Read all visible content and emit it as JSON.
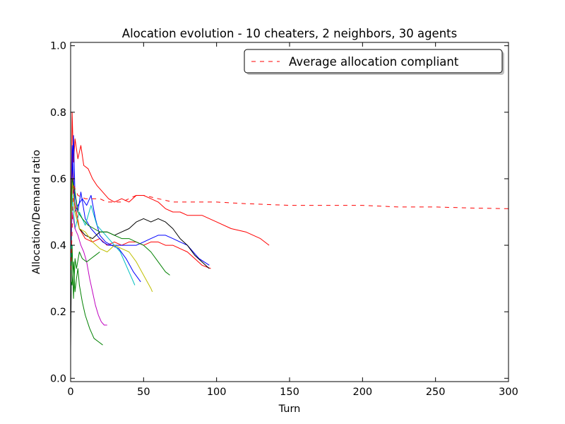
{
  "chart_data": {
    "type": "line",
    "title": "Alocation evolution - 10 cheaters, 2 neighbors, 30 agents",
    "xlabel": "Turn",
    "ylabel": "Allocation/Demand ratio",
    "xlim": [
      0,
      300
    ],
    "ylim": [
      -0.01,
      1.01
    ],
    "xticks": [
      0,
      50,
      100,
      150,
      200,
      250,
      300
    ],
    "xtick_labels": [
      "0",
      "50",
      "100",
      "150",
      "200",
      "250",
      "300"
    ],
    "yticks": [
      0.0,
      0.2,
      0.4,
      0.6,
      0.8,
      1.0
    ],
    "ytick_labels": [
      "0.0",
      "0.2",
      "0.4",
      "0.6",
      "0.8",
      "1.0"
    ],
    "grid": false,
    "legend": {
      "position": "top-right",
      "entries": [
        {
          "label": "Average allocation compliant",
          "color": "#ff0000",
          "style": "dashed"
        }
      ]
    },
    "series": [
      {
        "name": "Average allocation compliant",
        "color": "#ff0000",
        "dashed": true,
        "x": [
          0,
          2,
          5,
          10,
          15,
          20,
          25,
          30,
          35,
          40,
          45,
          50,
          55,
          60,
          65,
          70,
          80,
          90,
          100,
          120,
          150,
          175,
          200,
          225,
          250,
          275,
          300
        ],
        "y": [
          0.3,
          0.58,
          0.55,
          0.54,
          0.54,
          0.54,
          0.53,
          0.53,
          0.53,
          0.54,
          0.55,
          0.55,
          0.545,
          0.54,
          0.535,
          0.53,
          0.53,
          0.53,
          0.53,
          0.525,
          0.52,
          0.52,
          0.52,
          0.515,
          0.515,
          0.512,
          0.51
        ]
      },
      {
        "color": "#ff0000",
        "x": [
          0,
          1,
          2,
          3,
          5,
          7,
          9,
          12,
          15,
          18,
          22,
          26,
          30,
          35,
          40,
          45,
          50,
          55,
          60,
          65,
          70,
          75,
          80,
          90,
          100,
          110,
          120,
          130,
          136
        ],
        "y": [
          0.3,
          0.8,
          0.65,
          0.72,
          0.66,
          0.7,
          0.64,
          0.63,
          0.6,
          0.58,
          0.56,
          0.54,
          0.53,
          0.54,
          0.53,
          0.55,
          0.55,
          0.54,
          0.53,
          0.51,
          0.5,
          0.5,
          0.49,
          0.49,
          0.47,
          0.45,
          0.44,
          0.42,
          0.4
        ]
      },
      {
        "color": "#ff0000",
        "x": [
          0,
          1,
          2,
          4,
          6,
          10,
          15,
          20,
          25,
          30,
          35,
          40,
          45,
          50,
          55,
          60,
          65,
          70,
          75,
          80,
          85,
          90,
          96
        ],
        "y": [
          0.2,
          0.7,
          0.55,
          0.5,
          0.45,
          0.42,
          0.41,
          0.42,
          0.4,
          0.41,
          0.4,
          0.41,
          0.41,
          0.4,
          0.41,
          0.41,
          0.4,
          0.4,
          0.39,
          0.38,
          0.36,
          0.34,
          0.33
        ]
      },
      {
        "color": "#0000ff",
        "x": [
          0,
          1,
          2,
          3,
          5,
          7,
          10,
          14,
          18,
          22,
          26,
          30,
          35,
          40,
          45,
          50,
          55,
          60,
          65,
          70,
          75,
          80,
          88,
          95
        ],
        "y": [
          0.25,
          0.6,
          0.73,
          0.55,
          0.5,
          0.56,
          0.48,
          0.45,
          0.43,
          0.41,
          0.4,
          0.4,
          0.4,
          0.4,
          0.4,
          0.41,
          0.42,
          0.43,
          0.43,
          0.42,
          0.41,
          0.4,
          0.36,
          0.34
        ]
      },
      {
        "color": "#0000ff",
        "x": [
          0,
          1,
          3,
          5,
          8,
          11,
          14,
          17,
          20,
          24,
          28,
          33,
          38,
          43,
          48
        ],
        "y": [
          0.2,
          0.7,
          0.5,
          0.52,
          0.54,
          0.52,
          0.55,
          0.48,
          0.43,
          0.41,
          0.4,
          0.39,
          0.36,
          0.32,
          0.29
        ]
      },
      {
        "color": "#000000",
        "x": [
          0,
          1,
          3,
          6,
          10,
          15,
          20,
          25,
          30,
          35,
          40,
          45,
          50,
          55,
          60,
          65,
          70,
          75,
          80,
          85,
          90,
          95
        ],
        "y": [
          0.08,
          0.6,
          0.5,
          0.45,
          0.43,
          0.42,
          0.44,
          0.44,
          0.43,
          0.44,
          0.45,
          0.47,
          0.48,
          0.47,
          0.48,
          0.47,
          0.45,
          0.42,
          0.4,
          0.37,
          0.35,
          0.33
        ]
      },
      {
        "color": "#00bfbf",
        "x": [
          0,
          1,
          3,
          6,
          10,
          14,
          18,
          22,
          26,
          30,
          34,
          38,
          42,
          44
        ],
        "y": [
          0.25,
          0.55,
          0.45,
          0.5,
          0.46,
          0.52,
          0.46,
          0.44,
          0.42,
          0.4,
          0.38,
          0.34,
          0.3,
          0.28
        ]
      },
      {
        "color": "#bfbf00",
        "x": [
          0,
          1,
          3,
          6,
          10,
          15,
          20,
          25,
          30,
          35,
          40,
          45,
          50,
          55,
          56
        ],
        "y": [
          0.4,
          0.6,
          0.5,
          0.45,
          0.44,
          0.41,
          0.39,
          0.38,
          0.4,
          0.39,
          0.38,
          0.35,
          0.31,
          0.27,
          0.26
        ]
      },
      {
        "color": "#008000",
        "x": [
          0,
          1,
          3,
          5,
          8,
          12,
          16,
          20,
          25,
          30,
          35,
          40,
          45,
          50,
          55,
          60,
          65,
          68
        ],
        "y": [
          0.5,
          0.6,
          0.56,
          0.5,
          0.48,
          0.46,
          0.45,
          0.44,
          0.44,
          0.43,
          0.42,
          0.42,
          0.41,
          0.4,
          0.38,
          0.35,
          0.32,
          0.31
        ]
      },
      {
        "color": "#008000",
        "x": [
          0,
          1,
          2,
          3,
          4,
          5,
          6,
          8,
          10,
          13,
          16,
          19,
          22
        ],
        "y": [
          0.3,
          0.28,
          0.35,
          0.26,
          0.3,
          0.33,
          0.28,
          0.23,
          0.19,
          0.15,
          0.12,
          0.11,
          0.1
        ]
      },
      {
        "color": "#bf00bf",
        "x": [
          0,
          1,
          3,
          5,
          7,
          9,
          11,
          13,
          15,
          17,
          19,
          21,
          23,
          25
        ],
        "y": [
          0.4,
          0.5,
          0.45,
          0.43,
          0.4,
          0.38,
          0.35,
          0.3,
          0.26,
          0.22,
          0.19,
          0.17,
          0.16,
          0.16
        ]
      },
      {
        "color": "#008000",
        "x": [
          0,
          1,
          2,
          3,
          4,
          6,
          8,
          11,
          14,
          17,
          20
        ],
        "y": [
          0.28,
          0.4,
          0.24,
          0.36,
          0.33,
          0.38,
          0.36,
          0.35,
          0.36,
          0.37,
          0.38
        ]
      }
    ]
  }
}
